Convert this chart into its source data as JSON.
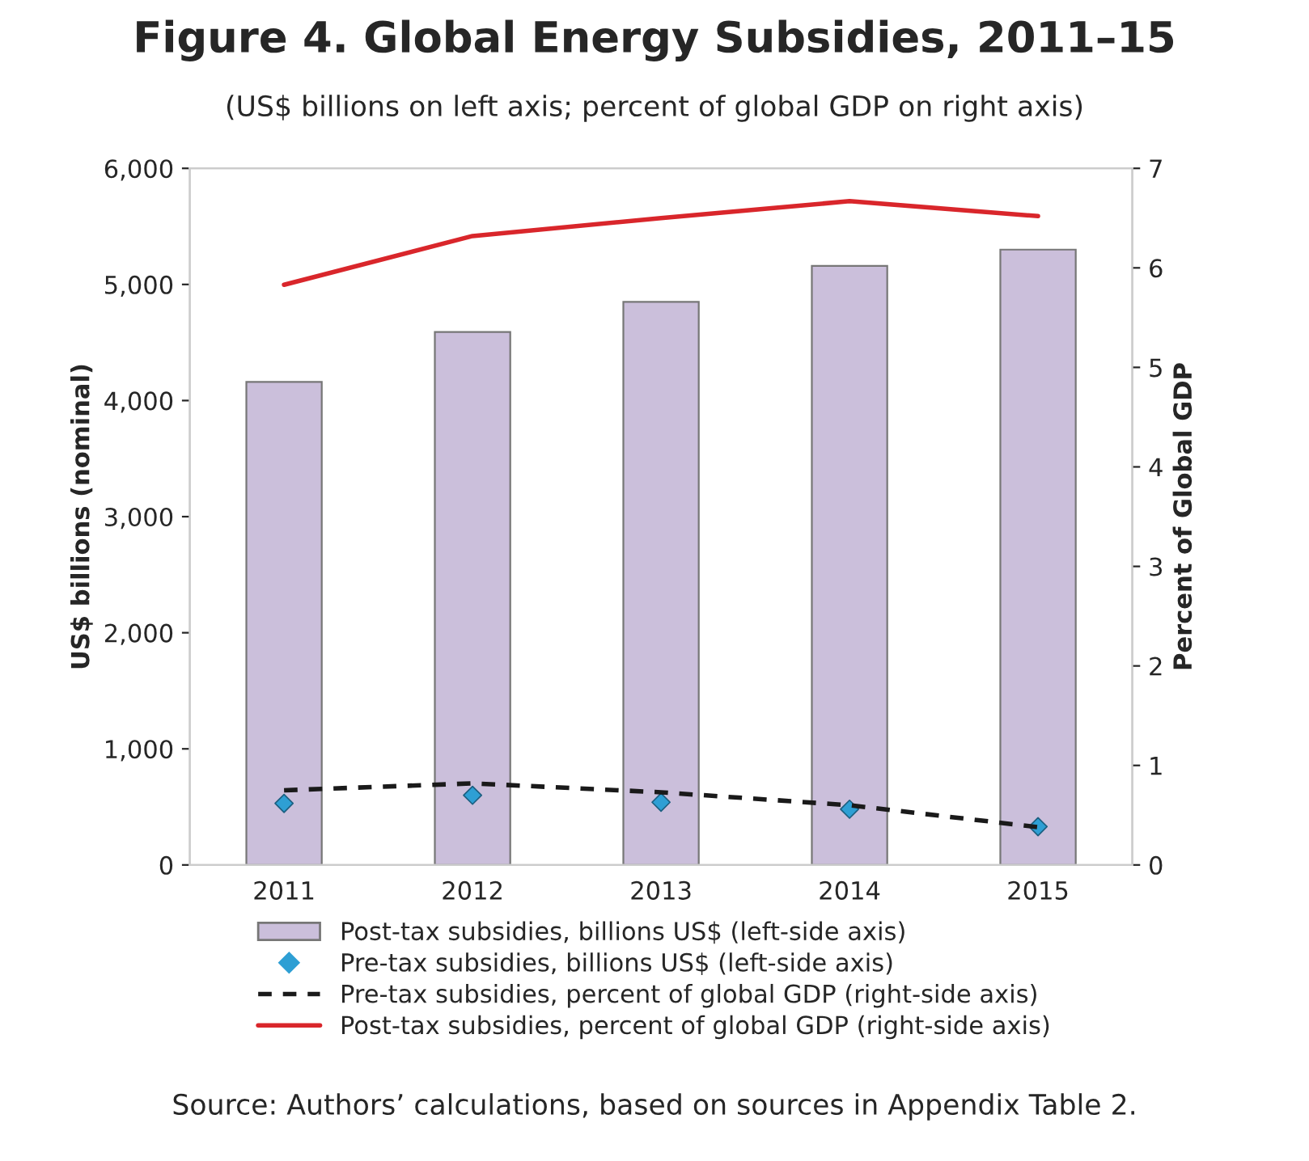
{
  "chart_data": {
    "type": "bar",
    "title": "Figure 4. Global Energy Subsidies, 2011–15",
    "subtitle": "(US$ billions on left axis; percent of global GDP on right axis)",
    "ylabel": "US$ billions (nominal)",
    "y2label": "Percent of Global GDP",
    "categories": [
      "2011",
      "2012",
      "2013",
      "2014",
      "2015"
    ],
    "series": [
      {
        "name": "Post-tax subsidies, billions US$ (left-side axis)",
        "color": "#cbbfdb",
        "values": [
          4160,
          4590,
          4850,
          5160,
          5300
        ]
      },
      {
        "name": "Pre-tax subsidies, billions US$ (left-side axis)",
        "type": "scatter",
        "marker": "diamond",
        "color": "#2e9fd4",
        "values": [
          530,
          600,
          540,
          480,
          330
        ]
      },
      {
        "name": "Pre-tax subsidies, percent of global GDP (right-side axis)",
        "type": "line",
        "axis": "y2",
        "line_style": "dashed",
        "color": "#1a1a1a",
        "values": [
          0.75,
          0.82,
          0.73,
          0.6,
          0.38
        ]
      },
      {
        "name": "Post-tax subsidies, percent of global GDP (right-side axis)",
        "type": "line",
        "axis": "y2",
        "line_style": "solid",
        "color": "#d9262b",
        "values": [
          5.83,
          6.32,
          6.5,
          6.67,
          6.52
        ]
      }
    ],
    "ylim": [
      0,
      6000
    ],
    "yticks": [
      {
        "value": 0,
        "label": "0"
      },
      {
        "value": 1000,
        "label": "1,000"
      },
      {
        "value": 2000,
        "label": "2,000"
      },
      {
        "value": 3000,
        "label": "3,000"
      },
      {
        "value": 4000,
        "label": "4,000"
      },
      {
        "value": 5000,
        "label": "5,000"
      },
      {
        "value": 6000,
        "label": "6,000"
      }
    ],
    "y2lim": [
      0,
      7
    ],
    "y2ticks": [
      0,
      1,
      2,
      3,
      4,
      5,
      6,
      7
    ],
    "legend": "bottom",
    "grid": false,
    "annotations": [
      "Source: Authors’ calculations, based on sources in Appendix Table 2."
    ]
  }
}
